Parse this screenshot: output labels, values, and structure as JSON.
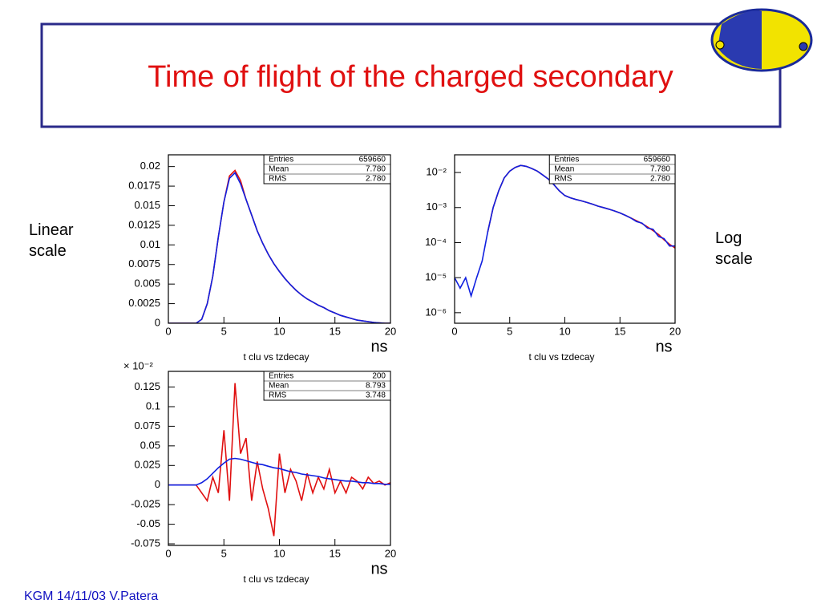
{
  "title": "Time of flight of the charged secondary",
  "annotations": [
    "Linear scale",
    "Log scale"
  ],
  "footer": "KGM 14/11/03 V.Patera",
  "chart_data": [
    {
      "type": "line",
      "x_label": "t clu vs tzdecay",
      "x_unit": "ns",
      "x": [
        0,
        0.5,
        1,
        1.5,
        2,
        2.5,
        3,
        3.5,
        4,
        4.5,
        5,
        5.5,
        6,
        6.5,
        7,
        7.5,
        8,
        8.5,
        9,
        9.5,
        10,
        10.5,
        11,
        11.5,
        12,
        12.5,
        13,
        13.5,
        14,
        14.5,
        15,
        15.5,
        16,
        16.5,
        17,
        17.5,
        18,
        18.5,
        19,
        19.5,
        20
      ],
      "xlim": [
        0,
        20
      ],
      "xticks": [
        0,
        5,
        10,
        15,
        20
      ],
      "ylim": [
        0,
        0.0215
      ],
      "yticks": [
        0,
        0.0025,
        0.005,
        0.0075,
        0.01,
        0.0125,
        0.015,
        0.0175,
        0.02
      ],
      "log_y": false,
      "stats": [
        [
          "Entries",
          "659660"
        ],
        [
          "Mean",
          "7.780"
        ],
        [
          "RMS",
          "2.780"
        ]
      ],
      "series": [
        {
          "color": "#e01010",
          "values": [
            0,
            0,
            0,
            0,
            0,
            0,
            0.0005,
            0.0025,
            0.006,
            0.011,
            0.0155,
            0.0188,
            0.0195,
            0.0182,
            0.0158,
            0.0138,
            0.0118,
            0.0102,
            0.0088,
            0.0076,
            0.0066,
            0.0057,
            0.0049,
            0.0042,
            0.0036,
            0.0031,
            0.0027,
            0.0023,
            0.002,
            0.0016,
            0.0013,
            0.001,
            0.0008,
            0.0006,
            0.0004,
            0.0003,
            0.0002,
            0.0001,
            5e-05,
            0,
            0
          ]
        },
        {
          "color": "#1020e0",
          "values": [
            0,
            0,
            0,
            0,
            0,
            0,
            0.0005,
            0.0025,
            0.006,
            0.011,
            0.0155,
            0.0185,
            0.0192,
            0.0178,
            0.0158,
            0.0138,
            0.0118,
            0.0102,
            0.0088,
            0.0076,
            0.0066,
            0.0057,
            0.0049,
            0.0042,
            0.0036,
            0.0031,
            0.0027,
            0.0023,
            0.002,
            0.0016,
            0.0013,
            0.001,
            0.0008,
            0.0006,
            0.0004,
            0.0003,
            0.0002,
            0.0001,
            5e-05,
            0,
            0
          ]
        }
      ]
    },
    {
      "type": "line",
      "x_label": "t clu vs tzdecay",
      "x_unit": "ns",
      "x": [
        0,
        0.5,
        1,
        1.5,
        2,
        2.5,
        3,
        3.5,
        4,
        4.5,
        5,
        5.5,
        6,
        6.5,
        7,
        7.5,
        8,
        8.5,
        9,
        9.5,
        10,
        10.5,
        11,
        11.5,
        12,
        12.5,
        13,
        13.5,
        14,
        14.5,
        15,
        15.5,
        16,
        16.5,
        17,
        17.5,
        18,
        18.5,
        19,
        19.5,
        20
      ],
      "xlim": [
        0,
        20
      ],
      "xticks": [
        0,
        5,
        10,
        15,
        20
      ],
      "ylim": [
        5e-07,
        0.032
      ],
      "yticks": [
        {
          "value": 1e-06,
          "label": "10⁻⁶"
        },
        {
          "value": 1e-05,
          "label": "10⁻⁵"
        },
        {
          "value": 0.0001,
          "label": "10⁻⁴"
        },
        {
          "value": 0.001,
          "label": "10⁻³"
        },
        {
          "value": 0.01,
          "label": "10⁻²"
        }
      ],
      "log_y": true,
      "stats": [
        [
          "Entries",
          "659660"
        ],
        [
          "Mean",
          "7.780"
        ],
        [
          "RMS",
          "2.780"
        ]
      ],
      "series": [
        {
          "color": "#e01010",
          "values": [
            null,
            null,
            null,
            null,
            null,
            null,
            0.0002,
            0.001,
            0.003,
            0.007,
            0.011,
            0.014,
            0.016,
            0.015,
            0.013,
            0.011,
            0.0085,
            0.0065,
            0.0045,
            0.003,
            0.0022,
            0.0019,
            0.0017,
            0.00155,
            0.0014,
            0.00125,
            0.0011,
            0.001,
            0.0009,
            0.0008,
            0.0007,
            0.0006,
            0.0005,
            0.00042,
            0.00035,
            0.00028,
            0.00022,
            0.00017,
            0.00012,
            9e-05,
            7e-05
          ]
        },
        {
          "color": "#1020e0",
          "values": [
            1e-05,
            5e-06,
            1e-05,
            3e-06,
            1e-05,
            3e-05,
            0.0002,
            0.001,
            0.003,
            0.007,
            0.011,
            0.014,
            0.016,
            0.015,
            0.013,
            0.011,
            0.0085,
            0.0065,
            0.0045,
            0.003,
            0.0022,
            0.0019,
            0.0017,
            0.00155,
            0.0014,
            0.00125,
            0.0011,
            0.001,
            0.0009,
            0.0008,
            0.0007,
            0.0006,
            0.0005,
            0.0004,
            0.00036,
            0.00026,
            0.00024,
            0.00015,
            0.00013,
            8e-05,
            8e-05
          ]
        }
      ]
    },
    {
      "type": "line",
      "x_label": "t clu vs tzdecay",
      "x_unit": "ns",
      "y_multiplier": "× 10⁻²",
      "x": [
        0,
        0.5,
        1,
        1.5,
        2,
        2.5,
        3,
        3.5,
        4,
        4.5,
        5,
        5.5,
        6,
        6.5,
        7,
        7.5,
        8,
        8.5,
        9,
        9.5,
        10,
        10.5,
        11,
        11.5,
        12,
        12.5,
        13,
        13.5,
        14,
        14.5,
        15,
        15.5,
        16,
        16.5,
        17,
        17.5,
        18,
        18.5,
        19,
        19.5,
        20
      ],
      "xlim": [
        0,
        20
      ],
      "xticks": [
        0,
        5,
        10,
        15,
        20
      ],
      "ylim": [
        -0.077,
        0.145
      ],
      "yticks": [
        -0.075,
        -0.05,
        -0.025,
        0,
        0.025,
        0.05,
        0.075,
        0.1,
        0.125
      ],
      "log_y": false,
      "stats": [
        [
          "Entries",
          "200"
        ],
        [
          "Mean",
          "8.793"
        ],
        [
          "RMS",
          "3.748"
        ]
      ],
      "series": [
        {
          "color": "#e01010",
          "values": [
            0,
            0,
            0,
            0,
            0,
            0,
            -0.01,
            -0.02,
            0.01,
            -0.01,
            0.07,
            -0.02,
            0.13,
            0.04,
            0.06,
            -0.02,
            0.03,
            -0.005,
            -0.03,
            -0.065,
            0.04,
            -0.01,
            0.02,
            0.005,
            -0.02,
            0.015,
            -0.01,
            0.01,
            -0.005,
            0.02,
            -0.01,
            0.005,
            -0.01,
            0.01,
            0.005,
            -0.005,
            0.01,
            0.002,
            0.005,
            0,
            0.003
          ]
        },
        {
          "color": "#1020e0",
          "values": [
            0,
            0,
            0,
            0,
            0,
            0,
            0.003,
            0.008,
            0.015,
            0.022,
            0.028,
            0.033,
            0.034,
            0.033,
            0.031,
            0.029,
            0.027,
            0.026,
            0.024,
            0.022,
            0.021,
            0.019,
            0.017,
            0.016,
            0.014,
            0.013,
            0.012,
            0.011,
            0.009,
            0.008,
            0.007,
            0.006,
            0.005,
            0.005,
            0.004,
            0.003,
            0.003,
            0.002,
            0.002,
            0.001,
            0.001
          ]
        }
      ]
    }
  ]
}
